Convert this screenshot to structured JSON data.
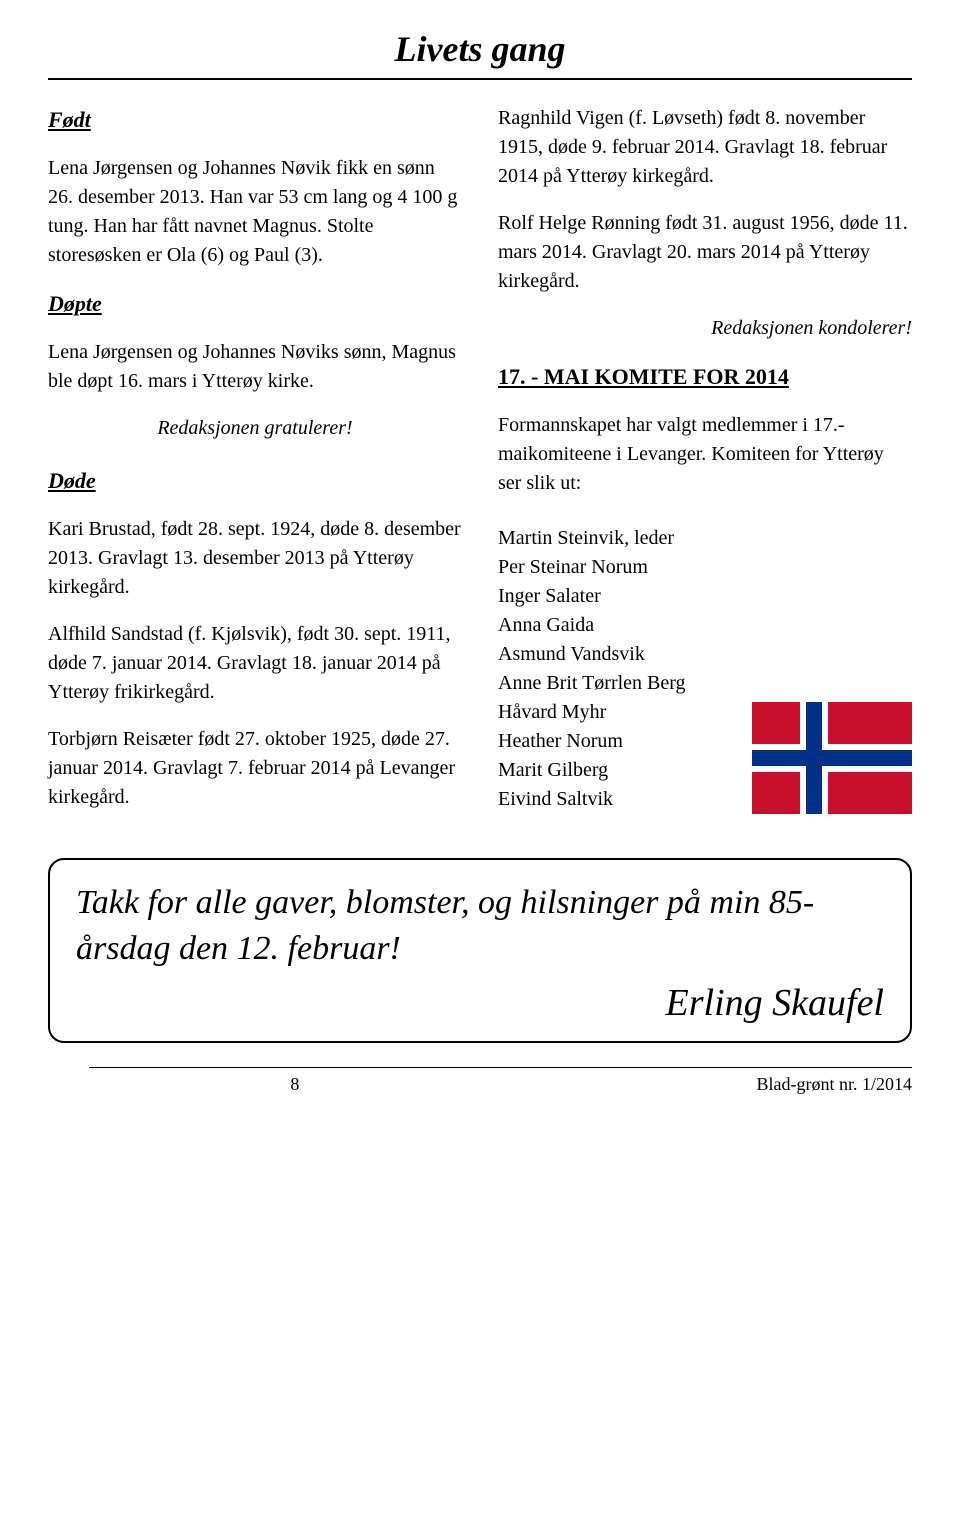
{
  "title": "Livets gang",
  "left": {
    "fodt_heading": "Født",
    "fodt_para": "Lena Jørgensen og Johannes Nøvik fikk en sønn 26. desember 2013. Han var 53 cm lang og 4 100 g tung. Han har fått navnet Magnus. Stolte storesøsken er Ola (6) og Paul (3).",
    "dopte_heading": "Døpte",
    "dopte_para": "Lena Jørgensen og Johannes Nøviks sønn, Magnus ble døpt 16. mars i Ytterøy kirke.",
    "gratulerer": "Redaksjonen gratulerer!",
    "dode_heading": "Døde",
    "dode_p1": "Kari Brustad, født 28. sept. 1924, døde 8. desember 2013. Gravlagt 13. desember 2013 på Ytterøy kirkegård.",
    "dode_p2": "Alfhild Sandstad (f. Kjølsvik), født 30. sept. 1911, døde 7. januar 2014. Gravlagt 18. januar 2014 på Ytterøy frikirkegård.",
    "dode_p3": "Torbjørn Reisæter født 27. oktober 1925, døde 27. januar 2014. Gravlagt 7. februar 2014 på Levanger kirkegård."
  },
  "right": {
    "p1": "Ragnhild Vigen (f. Løvseth) født 8. november 1915, døde 9. februar 2014. Gravlagt 18. februar 2014 på Ytterøy kirkegård.",
    "p2": "Rolf Helge Rønning født 31. august 1956, døde 11. mars 2014. Gravlagt 20. mars 2014 på Ytterøy kirkegård.",
    "kondolerer": "Redaksjonen kondolerer!",
    "komite_heading": "17. - MAI KOMITE FOR 2014",
    "komite_intro": "Formannskapet har valgt medlemmer i 17.- maikomiteene i Levanger. Komiteen for Ytterøy ser slik ut:",
    "komite_members": [
      "Martin Steinvik, leder",
      "Per Steinar Norum",
      "Inger Salater",
      "Anna Gaida",
      "Asmund Vandsvik",
      "Anne Brit Tørrlen Berg",
      "Håvard Myhr",
      "Heather Norum",
      "Marit Gilberg",
      "Eivind Saltvik"
    ]
  },
  "thanks": {
    "text": "Takk for alle gaver, blomster, og hilsninger på min 85-årsdag den 12. februar!",
    "signature": "Erling Skaufel"
  },
  "footer": {
    "page": "8",
    "issue": "Blad-grønt nr. 1/2014"
  },
  "flag": {
    "colors": {
      "red": "#c8102e",
      "white": "#ffffff",
      "blue": "#003087"
    }
  }
}
